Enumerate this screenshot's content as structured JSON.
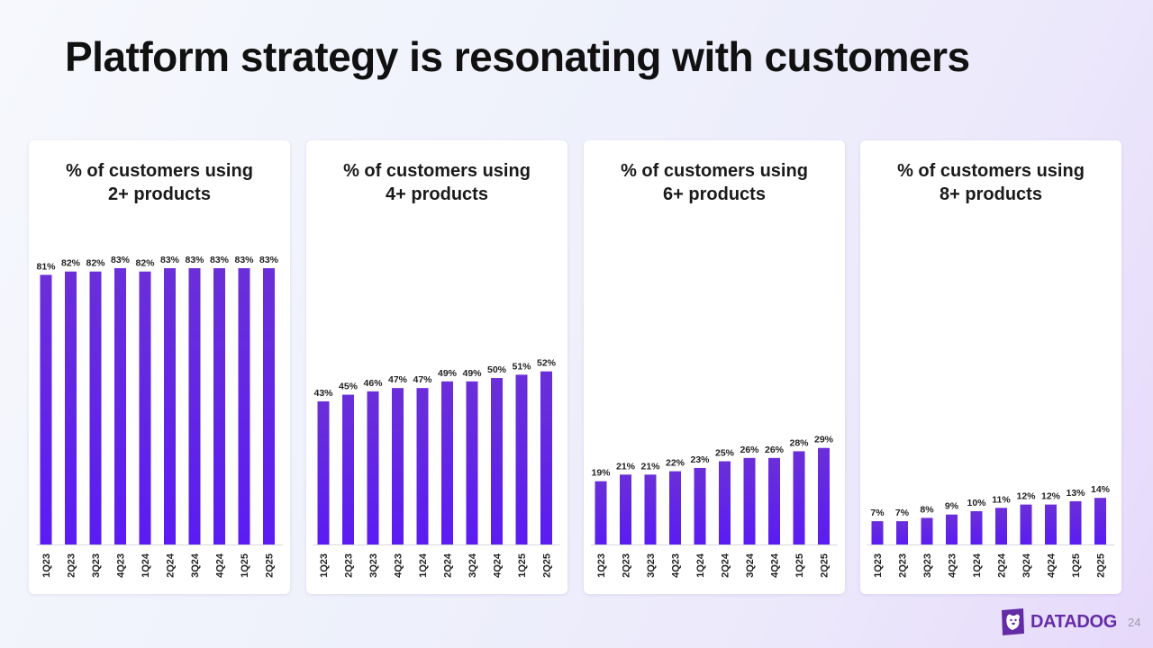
{
  "title": "Platform strategy is resonating with customers",
  "colors": {
    "bar_top": "#6a2fd8",
    "bar_bottom": "#5a1cf2",
    "brand": "#632ca6"
  },
  "brand": {
    "name": "DATADOG",
    "icon": "dog-logo-icon"
  },
  "page_number": "24",
  "chart_data": [
    {
      "type": "bar",
      "title_line1": "% of customers using",
      "title_line2": "2+ products",
      "categories": [
        "1Q23",
        "2Q23",
        "3Q23",
        "4Q23",
        "1Q24",
        "2Q24",
        "3Q24",
        "4Q24",
        "1Q25",
        "2Q25"
      ],
      "values": [
        81,
        82,
        82,
        83,
        82,
        83,
        83,
        83,
        83,
        83
      ],
      "value_labels": [
        "81%",
        "82%",
        "82%",
        "83%",
        "82%",
        "83%",
        "83%",
        "83%",
        "83%",
        "83%"
      ],
      "ylim": [
        0,
        83
      ]
    },
    {
      "type": "bar",
      "title_line1": "% of customers using",
      "title_line2": "4+ products",
      "categories": [
        "1Q23",
        "2Q23",
        "3Q23",
        "4Q23",
        "1Q24",
        "2Q24",
        "3Q24",
        "4Q24",
        "1Q25",
        "2Q25"
      ],
      "values": [
        43,
        45,
        46,
        47,
        47,
        49,
        49,
        50,
        51,
        52
      ],
      "value_labels": [
        "43%",
        "45%",
        "46%",
        "47%",
        "47%",
        "49%",
        "49%",
        "50%",
        "51%",
        "52%"
      ],
      "ylim": [
        0,
        83
      ]
    },
    {
      "type": "bar",
      "title_line1": "% of customers using",
      "title_line2": "6+ products",
      "categories": [
        "1Q23",
        "2Q23",
        "3Q23",
        "4Q23",
        "1Q24",
        "2Q24",
        "3Q24",
        "4Q24",
        "1Q25",
        "2Q25"
      ],
      "values": [
        19,
        21,
        21,
        22,
        23,
        25,
        26,
        26,
        28,
        29
      ],
      "value_labels": [
        "19%",
        "21%",
        "21%",
        "22%",
        "23%",
        "25%",
        "26%",
        "26%",
        "28%",
        "29%"
      ],
      "ylim": [
        0,
        83
      ]
    },
    {
      "type": "bar",
      "title_line1": "% of customers using",
      "title_line2": "8+ products",
      "categories": [
        "1Q23",
        "2Q23",
        "3Q23",
        "4Q23",
        "1Q24",
        "2Q24",
        "3Q24",
        "4Q24",
        "1Q25",
        "2Q25"
      ],
      "values": [
        7,
        7,
        8,
        9,
        10,
        11,
        12,
        12,
        13,
        14
      ],
      "value_labels": [
        "7%",
        "7%",
        "8%",
        "9%",
        "10%",
        "11%",
        "12%",
        "12%",
        "13%",
        "14%"
      ],
      "ylim": [
        0,
        83
      ]
    }
  ]
}
